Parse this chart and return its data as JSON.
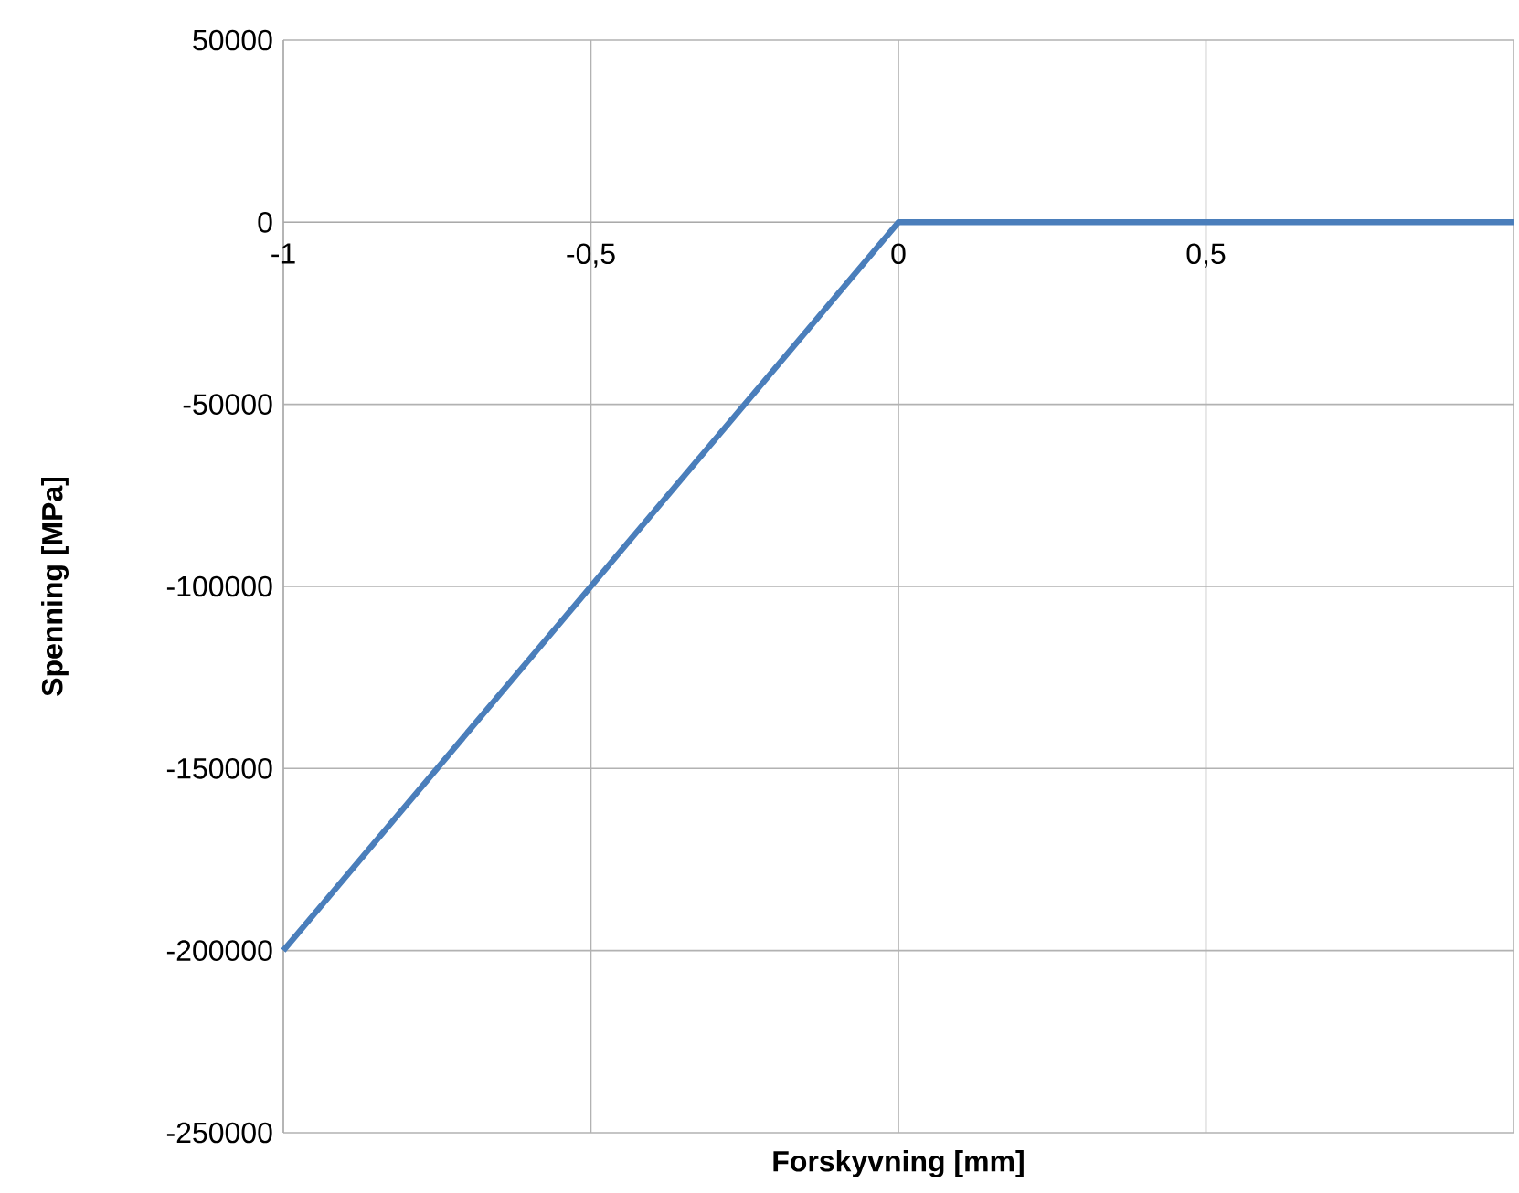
{
  "chart_data": {
    "type": "line",
    "xlabel": "Forskyvning [mm]",
    "ylabel": "Spenning [MPa]",
    "x": [
      -1,
      0,
      1
    ],
    "series": [
      {
        "color": "#4a7ebb",
        "values": [
          -200000,
          0,
          0
        ]
      }
    ],
    "xlim": [
      -1,
      1
    ],
    "xticks": [
      -1,
      {
        "value": -0.5,
        "label": "-0,5"
      },
      0,
      {
        "value": 0.5,
        "label": "0,5"
      },
      {
        "value": 1,
        "label": null
      }
    ],
    "ylim": [
      -250000,
      50000
    ],
    "yticks": [
      -250000,
      -200000,
      -150000,
      -100000,
      -50000,
      0,
      50000
    ],
    "grid": true
  }
}
